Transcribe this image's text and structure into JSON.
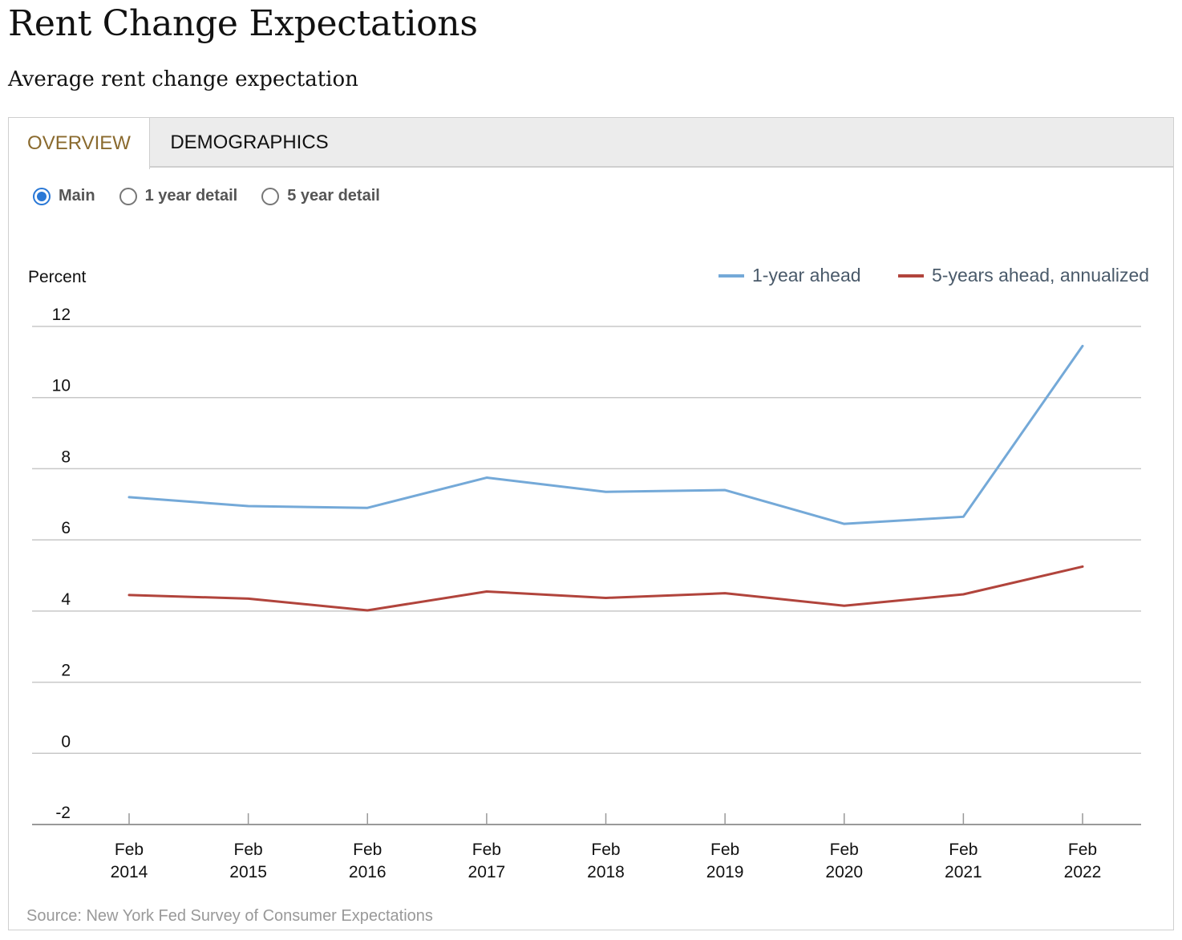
{
  "header": {
    "title": "Rent Change Expectations",
    "subtitle": "Average rent change expectation"
  },
  "tabs": [
    {
      "label": "OVERVIEW",
      "active": true
    },
    {
      "label": "DEMOGRAPHICS",
      "active": false
    }
  ],
  "radios": [
    {
      "label": "Main",
      "checked": true
    },
    {
      "label": "1 year detail",
      "checked": false
    },
    {
      "label": "5 year detail",
      "checked": false
    }
  ],
  "source": "Source: New York Fed Survey of Consumer Expectations",
  "colors": {
    "series_1": "#74a9d8",
    "series_2": "#b1443c",
    "tab_active_text": "#8a6a2e",
    "radio_accent": "#2a78d6"
  },
  "chart_data": {
    "type": "line",
    "ylabel": "Percent",
    "ylim": [
      -2,
      12
    ],
    "yticks": [
      "12",
      "10",
      "8",
      "6",
      "4",
      "2",
      "0",
      "-2"
    ],
    "ytick_values": [
      12,
      10,
      8,
      6,
      4,
      2,
      0,
      -2
    ],
    "categories": [
      "Feb 2014",
      "Feb 2015",
      "Feb 2016",
      "Feb 2017",
      "Feb 2018",
      "Feb 2019",
      "Feb 2020",
      "Feb 2021",
      "Feb 2022"
    ],
    "category_lines": [
      [
        "Feb",
        "2014"
      ],
      [
        "Feb",
        "2015"
      ],
      [
        "Feb",
        "2016"
      ],
      [
        "Feb",
        "2017"
      ],
      [
        "Feb",
        "2018"
      ],
      [
        "Feb",
        "2019"
      ],
      [
        "Feb",
        "2020"
      ],
      [
        "Feb",
        "2021"
      ],
      [
        "Feb",
        "2022"
      ]
    ],
    "legend_position": "top-right",
    "grid": true,
    "series": [
      {
        "name": "1-year ahead",
        "values": [
          7.2,
          6.95,
          6.9,
          7.75,
          7.35,
          7.4,
          6.45,
          6.65,
          11.45
        ]
      },
      {
        "name": "5-years ahead, annualized",
        "values": [
          4.45,
          4.35,
          4.02,
          4.55,
          4.37,
          4.5,
          4.15,
          4.47,
          5.25
        ]
      }
    ]
  }
}
